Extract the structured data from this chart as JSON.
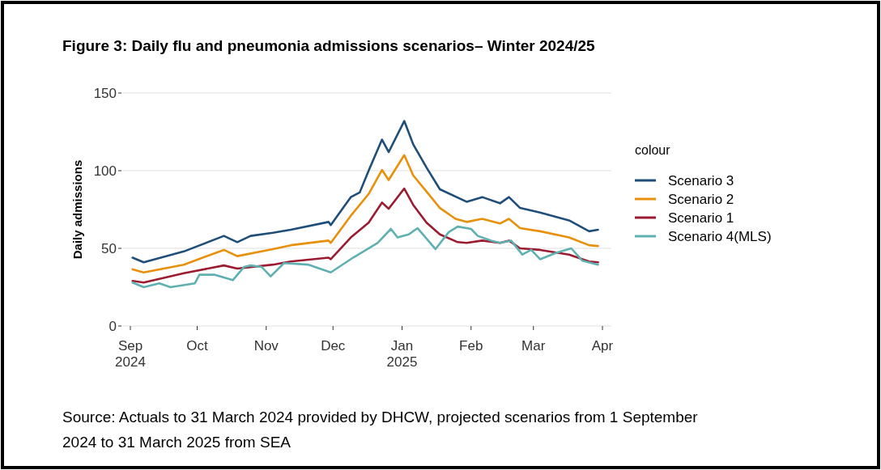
{
  "chart_data": {
    "type": "line",
    "title": "Figure 3: Daily flu and pneumonia admissions scenarios– Winter 2024/25",
    "ylabel": "Daily admissions",
    "legend_title": "colour",
    "legend": "right",
    "grid": "y",
    "line_style": "solid",
    "xlim": [
      "2024-08-28",
      "2025-04-05"
    ],
    "xticks": [
      {
        "value": "2024-09-01",
        "label": "Sep\n2024"
      },
      {
        "value": "2024-10-01",
        "label": "Oct"
      },
      {
        "value": "2024-11-01",
        "label": "Nov"
      },
      {
        "value": "2024-12-01",
        "label": "Dec"
      },
      {
        "value": "2025-01-01",
        "label": "Jan\n2025"
      },
      {
        "value": "2025-02-01",
        "label": "Feb"
      },
      {
        "value": "2025-03-01",
        "label": "Mar"
      },
      {
        "value": "2025-04-01",
        "label": "Apr"
      }
    ],
    "ylim": [
      0,
      150
    ],
    "yticks": [
      0,
      50,
      100,
      150
    ],
    "series": [
      {
        "name": "Scenario 3",
        "color": "#1f4e79",
        "x": [
          "2024-09-02",
          "2024-09-07",
          "2024-09-25",
          "2024-10-13",
          "2024-10-19",
          "2024-10-25",
          "2024-11-04",
          "2024-11-12",
          "2024-11-29",
          "2024-11-30",
          "2024-12-09",
          "2024-12-13",
          "2024-12-17",
          "2024-12-23",
          "2024-12-26",
          "2025-01-02",
          "2025-01-06",
          "2025-01-12",
          "2025-01-18",
          "2025-01-30",
          "2025-02-06",
          "2025-02-14",
          "2025-02-18",
          "2025-02-23",
          "2025-03-04",
          "2025-03-17",
          "2025-03-26",
          "2025-03-30"
        ],
        "values": [
          44,
          41,
          48,
          58,
          54,
          58,
          60,
          62,
          67,
          65,
          83,
          86,
          100,
          120,
          112,
          132,
          117,
          102,
          88,
          80,
          83,
          79,
          83,
          76,
          73,
          68,
          61,
          62
        ]
      },
      {
        "name": "Scenario 2",
        "color": "#e8900c",
        "x": [
          "2024-09-02",
          "2024-09-07",
          "2024-09-25",
          "2024-10-13",
          "2024-10-19",
          "2024-11-04",
          "2024-11-12",
          "2024-11-29",
          "2024-11-30",
          "2024-12-09",
          "2024-12-17",
          "2024-12-23",
          "2024-12-26",
          "2025-01-02",
          "2025-01-06",
          "2025-01-12",
          "2025-01-18",
          "2025-01-25",
          "2025-01-30",
          "2025-02-06",
          "2025-02-14",
          "2025-02-18",
          "2025-02-23",
          "2025-03-04",
          "2025-03-17",
          "2025-03-26",
          "2025-03-30"
        ],
        "values": [
          36.5,
          34.5,
          39.5,
          49,
          45,
          49.5,
          52,
          55,
          53.5,
          71,
          85,
          100.5,
          94,
          110,
          97,
          86.5,
          76,
          69,
          67,
          69,
          66,
          69,
          63,
          61,
          57,
          52,
          51.5
        ]
      },
      {
        "name": "Scenario 1",
        "color": "#9b1b30",
        "x": [
          "2024-09-02",
          "2024-09-07",
          "2024-09-25",
          "2024-10-13",
          "2024-10-19",
          "2024-11-04",
          "2024-11-12",
          "2024-11-29",
          "2024-11-30",
          "2024-12-09",
          "2024-12-17",
          "2024-12-23",
          "2024-12-26",
          "2025-01-02",
          "2025-01-06",
          "2025-01-12",
          "2025-01-18",
          "2025-01-26",
          "2025-01-30",
          "2025-02-06",
          "2025-02-14",
          "2025-02-18",
          "2025-02-23",
          "2025-03-04",
          "2025-03-17",
          "2025-03-26",
          "2025-03-30"
        ],
        "values": [
          29,
          28,
          34,
          39,
          37,
          39.5,
          41.5,
          44,
          43,
          57,
          66.5,
          79.5,
          75.5,
          88.5,
          78,
          66.5,
          59,
          54,
          53.5,
          55,
          53.5,
          55,
          50,
          49,
          46,
          41.5,
          41
        ]
      },
      {
        "name": "Scenario 4(MLS)",
        "color": "#5fb0b0",
        "x": [
          "2024-09-02",
          "2024-09-07",
          "2024-09-14",
          "2024-09-19",
          "2024-09-30",
          "2024-10-02",
          "2024-10-09",
          "2024-10-17",
          "2024-10-22",
          "2024-10-25",
          "2024-10-30",
          "2024-11-03",
          "2024-11-09",
          "2024-11-20",
          "2024-11-30",
          "2024-12-10",
          "2024-12-21",
          "2024-12-27",
          "2024-12-30",
          "2025-01-04",
          "2025-01-08",
          "2025-01-16",
          "2025-01-22",
          "2025-01-26",
          "2025-02-01",
          "2025-02-04",
          "2025-02-10",
          "2025-02-14",
          "2025-02-19",
          "2025-02-24",
          "2025-02-28",
          "2025-03-04",
          "2025-03-11",
          "2025-03-18",
          "2025-03-23",
          "2025-03-30"
        ],
        "values": [
          28,
          25,
          27.5,
          25,
          27.5,
          33,
          33,
          29.5,
          38,
          39,
          38,
          32,
          40.5,
          39.5,
          34.5,
          44,
          53.5,
          62.5,
          57,
          59,
          63,
          49.5,
          60.5,
          64,
          62.5,
          58,
          55,
          53.5,
          55,
          46,
          49,
          43,
          47,
          50,
          42,
          39.5
        ]
      }
    ],
    "annotations": [
      "Source: Actuals to 31 March 2024 provided by DHCW, projected scenarios from 1 September 2024 to 31 March 2025 from SEA"
    ]
  }
}
